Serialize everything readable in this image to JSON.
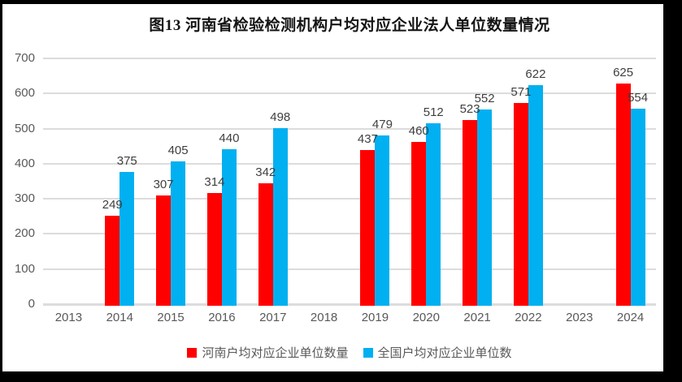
{
  "title": {
    "text": "图13  河南省检验检测机构户均对应企业法人单位数量情况"
  },
  "chart_data": {
    "type": "bar",
    "title": "图13  河南省检验检测机构户均对应企业法人单位数量情况",
    "categories": [
      "2013",
      "2014",
      "2015",
      "2016",
      "2017",
      "2018",
      "2019",
      "2020",
      "2021",
      "2022",
      "2023",
      "2024"
    ],
    "series": [
      {
        "name": "河南户均对应企业单位数量",
        "color": "#ff0000",
        "values": [
          null,
          249,
          307,
          314,
          342,
          null,
          437,
          460,
          523,
          571,
          null,
          625
        ]
      },
      {
        "name": "全国户均对应企业单位数",
        "color": "#00b0f0",
        "values": [
          null,
          375,
          405,
          440,
          498,
          null,
          479,
          512,
          552,
          622,
          null,
          554
        ]
      }
    ],
    "xlabel": "",
    "ylabel": "",
    "ylim": [
      0,
      700
    ],
    "yticks": [
      0,
      100,
      200,
      300,
      400,
      500,
      600,
      700
    ],
    "grid": true,
    "data_labels": true,
    "legend_position": "bottom"
  },
  "colors": {
    "grid": "#dcdcdc",
    "axis_text": "#595959",
    "data_label_text": "#3f3f3f",
    "title_text": "#141414",
    "frame": "#000000",
    "background": "#ffffff"
  }
}
